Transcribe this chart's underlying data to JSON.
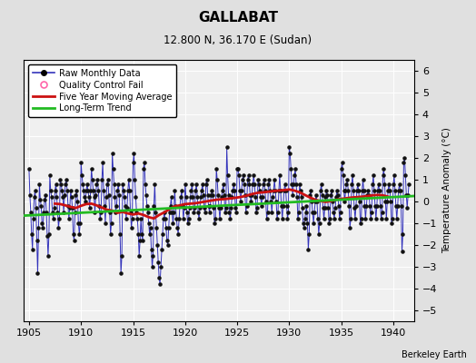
{
  "title": "GALLABAT",
  "subtitle": "12.800 N, 36.170 E (Sudan)",
  "ylabel": "Temperature Anomaly (°C)",
  "credit": "Berkeley Earth",
  "xlim": [
    1904.5,
    1942.0
  ],
  "ylim": [
    -5.5,
    6.5
  ],
  "yticks": [
    -5,
    -4,
    -3,
    -2,
    -1,
    0,
    1,
    2,
    3,
    4,
    5,
    6
  ],
  "xticks": [
    1905,
    1910,
    1915,
    1920,
    1925,
    1930,
    1935,
    1940
  ],
  "bg_color": "#e0e0e0",
  "plot_bg_color": "#f0f0f0",
  "raw_line_color": "#3333bb",
  "raw_dot_color": "#111111",
  "moving_avg_color": "#cc1111",
  "trend_color": "#22bb22",
  "legend_qc_color": "#ff66aa",
  "raw_monthly_x": [
    1905.0,
    1905.083,
    1905.167,
    1905.25,
    1905.333,
    1905.417,
    1905.5,
    1905.583,
    1905.667,
    1905.75,
    1905.833,
    1905.917,
    1906.0,
    1906.083,
    1906.167,
    1906.25,
    1906.333,
    1906.417,
    1906.5,
    1906.583,
    1906.667,
    1906.75,
    1906.833,
    1906.917,
    1907.0,
    1907.083,
    1907.167,
    1907.25,
    1907.333,
    1907.417,
    1907.5,
    1907.583,
    1907.667,
    1907.75,
    1907.833,
    1907.917,
    1908.0,
    1908.083,
    1908.167,
    1908.25,
    1908.333,
    1908.417,
    1908.5,
    1908.583,
    1908.667,
    1908.75,
    1908.833,
    1908.917,
    1909.0,
    1909.083,
    1909.167,
    1909.25,
    1909.333,
    1909.417,
    1909.5,
    1909.583,
    1909.667,
    1909.75,
    1909.833,
    1909.917,
    1910.0,
    1910.083,
    1910.167,
    1910.25,
    1910.333,
    1910.417,
    1910.5,
    1910.583,
    1910.667,
    1910.75,
    1910.833,
    1910.917,
    1911.0,
    1911.083,
    1911.167,
    1911.25,
    1911.333,
    1911.417,
    1911.5,
    1911.583,
    1911.667,
    1911.75,
    1911.833,
    1911.917,
    1912.0,
    1912.083,
    1912.167,
    1912.25,
    1912.333,
    1912.417,
    1912.5,
    1912.583,
    1912.667,
    1912.75,
    1912.833,
    1912.917,
    1913.0,
    1913.083,
    1913.167,
    1913.25,
    1913.333,
    1913.417,
    1913.5,
    1913.583,
    1913.667,
    1913.75,
    1913.833,
    1913.917,
    1914.0,
    1914.083,
    1914.167,
    1914.25,
    1914.333,
    1914.417,
    1914.5,
    1914.583,
    1914.667,
    1914.75,
    1914.833,
    1914.917,
    1915.0,
    1915.083,
    1915.167,
    1915.25,
    1915.333,
    1915.417,
    1915.5,
    1915.583,
    1915.667,
    1915.75,
    1915.833,
    1915.917,
    1916.0,
    1916.083,
    1916.167,
    1916.25,
    1916.333,
    1916.417,
    1916.5,
    1916.583,
    1916.667,
    1916.75,
    1916.833,
    1916.917,
    1917.0,
    1917.083,
    1917.167,
    1917.25,
    1917.333,
    1917.417,
    1917.5,
    1917.583,
    1917.667,
    1917.75,
    1917.833,
    1917.917,
    1918.0,
    1918.083,
    1918.167,
    1918.25,
    1918.333,
    1918.417,
    1918.5,
    1918.583,
    1918.667,
    1918.75,
    1918.833,
    1918.917,
    1919.0,
    1919.083,
    1919.167,
    1919.25,
    1919.333,
    1919.417,
    1919.5,
    1919.583,
    1919.667,
    1919.75,
    1919.833,
    1919.917,
    1920.0,
    1920.083,
    1920.167,
    1920.25,
    1920.333,
    1920.417,
    1920.5,
    1920.583,
    1920.667,
    1920.75,
    1920.833,
    1920.917,
    1921.0,
    1921.083,
    1921.167,
    1921.25,
    1921.333,
    1921.417,
    1921.5,
    1921.583,
    1921.667,
    1921.75,
    1921.833,
    1921.917,
    1922.0,
    1922.083,
    1922.167,
    1922.25,
    1922.333,
    1922.417,
    1922.5,
    1922.583,
    1922.667,
    1922.75,
    1922.833,
    1922.917,
    1923.0,
    1923.083,
    1923.167,
    1923.25,
    1923.333,
    1923.417,
    1923.5,
    1923.583,
    1923.667,
    1923.75,
    1923.833,
    1923.917,
    1924.0,
    1924.083,
    1924.167,
    1924.25,
    1924.333,
    1924.417,
    1924.5,
    1924.583,
    1924.667,
    1924.75,
    1924.833,
    1924.917,
    1925.0,
    1925.083,
    1925.167,
    1925.25,
    1925.333,
    1925.417,
    1925.5,
    1925.583,
    1925.667,
    1925.75,
    1925.833,
    1925.917,
    1926.0,
    1926.083,
    1926.167,
    1926.25,
    1926.333,
    1926.417,
    1926.5,
    1926.583,
    1926.667,
    1926.75,
    1926.833,
    1926.917,
    1927.0,
    1927.083,
    1927.167,
    1927.25,
    1927.333,
    1927.417,
    1927.5,
    1927.583,
    1927.667,
    1927.75,
    1927.833,
    1927.917,
    1928.0,
    1928.083,
    1928.167,
    1928.25,
    1928.333,
    1928.417,
    1928.5,
    1928.583,
    1928.667,
    1928.75,
    1928.833,
    1928.917,
    1929.0,
    1929.083,
    1929.167,
    1929.25,
    1929.333,
    1929.417,
    1929.5,
    1929.583,
    1929.667,
    1929.75,
    1929.833,
    1929.917,
    1930.0,
    1930.083,
    1930.167,
    1930.25,
    1930.333,
    1930.417,
    1930.5,
    1930.583,
    1930.667,
    1930.75,
    1930.833,
    1930.917,
    1931.0,
    1931.083,
    1931.167,
    1931.25,
    1931.333,
    1931.417,
    1931.5,
    1931.583,
    1931.667,
    1931.75,
    1931.833,
    1931.917,
    1932.0,
    1932.083,
    1932.167,
    1932.25,
    1932.333,
    1932.417,
    1932.5,
    1932.583,
    1932.667,
    1932.75,
    1932.833,
    1932.917,
    1933.0,
    1933.083,
    1933.167,
    1933.25,
    1933.333,
    1933.417,
    1933.5,
    1933.583,
    1933.667,
    1933.75,
    1933.833,
    1933.917,
    1934.0,
    1934.083,
    1934.167,
    1934.25,
    1934.333,
    1934.417,
    1934.5,
    1934.583,
    1934.667,
    1934.75,
    1934.833,
    1934.917,
    1935.0,
    1935.083,
    1935.167,
    1935.25,
    1935.333,
    1935.417,
    1935.5,
    1935.583,
    1935.667,
    1935.75,
    1935.833,
    1935.917,
    1936.0,
    1936.083,
    1936.167,
    1936.25,
    1936.333,
    1936.417,
    1936.5,
    1936.583,
    1936.667,
    1936.75,
    1936.833,
    1936.917,
    1937.0,
    1937.083,
    1937.167,
    1937.25,
    1937.333,
    1937.417,
    1937.5,
    1937.583,
    1937.667,
    1937.75,
    1937.833,
    1937.917,
    1938.0,
    1938.083,
    1938.167,
    1938.25,
    1938.333,
    1938.417,
    1938.5,
    1938.583,
    1938.667,
    1938.75,
    1938.833,
    1938.917,
    1939.0,
    1939.083,
    1939.167,
    1939.25,
    1939.333,
    1939.417,
    1939.5,
    1939.583,
    1939.667,
    1939.75,
    1939.833,
    1939.917,
    1940.0,
    1940.083,
    1940.167,
    1940.25,
    1940.333,
    1940.417,
    1940.5,
    1940.583,
    1940.667,
    1940.75,
    1940.833,
    1940.917,
    1941.0,
    1941.083,
    1941.167,
    1941.25,
    1941.333,
    1941.417,
    1941.5
  ],
  "raw_monthly_y": [
    1.5,
    0.3,
    -0.5,
    -1.5,
    -2.2,
    -0.8,
    0.2,
    0.5,
    -0.3,
    -1.8,
    -3.3,
    -1.2,
    0.8,
    0.1,
    -0.2,
    -1.0,
    -1.2,
    -0.5,
    0.1,
    0.3,
    -0.5,
    -1.6,
    -2.5,
    -1.5,
    1.2,
    0.5,
    0.2,
    -0.5,
    -0.8,
    -0.3,
    0.5,
    0.8,
    0.2,
    -0.5,
    -1.2,
    -0.8,
    1.0,
    0.8,
    0.5,
    0.2,
    -0.5,
    0.3,
    0.8,
    1.0,
    0.5,
    -0.2,
    -0.8,
    -0.3,
    0.5,
    0.2,
    -0.3,
    -1.5,
    -1.8,
    -0.5,
    0.3,
    0.5,
    0.0,
    -1.0,
    -1.5,
    -1.0,
    1.8,
    1.2,
    0.8,
    0.5,
    0.2,
    0.0,
    0.5,
    0.8,
    0.5,
    0.2,
    -0.3,
    0.5,
    1.5,
    1.0,
    0.5,
    0.2,
    -0.5,
    0.3,
    0.8,
    1.0,
    0.5,
    -0.2,
    -0.8,
    -0.5,
    1.0,
    1.8,
    0.5,
    -0.2,
    -1.0,
    0.2,
    0.8,
    1.0,
    0.3,
    -0.5,
    -1.5,
    -1.0,
    2.2,
    1.5,
    0.8,
    0.2,
    -0.5,
    -0.2,
    0.5,
    0.8,
    0.3,
    -1.5,
    -3.3,
    -2.5,
    0.8,
    0.5,
    0.2,
    -0.2,
    -0.8,
    -0.3,
    0.5,
    1.0,
    0.5,
    -0.5,
    -1.2,
    -0.8,
    1.8,
    2.2,
    1.0,
    0.2,
    -0.5,
    -0.8,
    -1.5,
    -2.5,
    -1.8,
    -0.8,
    -1.5,
    -1.8,
    1.5,
    1.8,
    0.8,
    0.3,
    -0.2,
    -0.5,
    -1.0,
    -1.5,
    -1.2,
    -2.2,
    -3.0,
    -2.5,
    -0.2,
    0.8,
    -0.5,
    -1.2,
    -2.0,
    -2.8,
    -3.5,
    -3.8,
    -3.0,
    -2.2,
    -1.5,
    -0.8,
    -0.5,
    -0.8,
    -1.2,
    -1.8,
    -2.0,
    -1.2,
    -0.5,
    -0.2,
    0.2,
    -0.5,
    -1.0,
    -0.5,
    0.5,
    -0.2,
    -0.8,
    -1.2,
    -1.5,
    -0.8,
    -0.2,
    0.2,
    0.5,
    -0.2,
    -0.8,
    -0.3,
    0.8,
    0.2,
    -0.5,
    -1.0,
    -0.8,
    -0.3,
    0.2,
    0.5,
    0.8,
    0.2,
    -0.5,
    -0.3,
    0.5,
    0.8,
    0.2,
    -0.5,
    -0.8,
    -0.3,
    0.2,
    0.5,
    0.8,
    0.3,
    -0.3,
    -0.5,
    0.8,
    1.0,
    0.3,
    -0.2,
    -0.5,
    -0.2,
    0.3,
    0.5,
    0.3,
    -0.3,
    -1.0,
    -0.8,
    1.5,
    1.0,
    0.3,
    -0.3,
    -0.8,
    -0.3,
    0.2,
    0.5,
    0.8,
    0.3,
    -0.5,
    -0.3,
    2.5,
    1.2,
    0.3,
    -0.5,
    -0.8,
    -0.3,
    0.2,
    0.5,
    0.8,
    0.5,
    -0.3,
    -0.5,
    1.5,
    1.5,
    1.2,
    0.5,
    0.0,
    0.5,
    1.0,
    1.2,
    0.8,
    0.3,
    -0.5,
    -0.2,
    1.0,
    1.2,
    0.8,
    0.3,
    0.0,
    0.3,
    0.8,
    1.2,
    0.8,
    0.2,
    -0.5,
    -0.3,
    1.0,
    0.8,
    0.5,
    0.2,
    -0.2,
    0.2,
    0.8,
    1.0,
    0.5,
    0.0,
    -0.8,
    -0.5,
    0.8,
    1.0,
    0.5,
    0.0,
    -0.5,
    0.2,
    0.5,
    1.0,
    0.5,
    0.0,
    -0.8,
    -0.5,
    0.5,
    1.2,
    0.5,
    -0.2,
    -0.8,
    -0.2,
    0.5,
    0.8,
    0.5,
    -0.2,
    -0.8,
    -0.5,
    2.5,
    2.2,
    1.5,
    0.8,
    0.3,
    0.8,
    1.2,
    1.5,
    0.8,
    0.2,
    -0.8,
    -0.5,
    0.8,
    0.5,
    0.2,
    -0.3,
    -1.0,
    -1.2,
    -0.8,
    -0.5,
    -0.2,
    -1.0,
    -2.2,
    -1.5,
    0.3,
    0.5,
    0.0,
    -0.5,
    -1.0,
    -0.5,
    0.0,
    0.3,
    0.0,
    -0.8,
    -1.5,
    -1.0,
    0.5,
    0.8,
    0.3,
    -0.3,
    -0.8,
    -0.3,
    0.2,
    0.5,
    0.3,
    -0.3,
    -1.0,
    -0.8,
    0.3,
    0.5,
    0.0,
    -0.5,
    -0.8,
    -0.3,
    0.2,
    0.5,
    0.3,
    -0.2,
    -0.8,
    -0.5,
    1.5,
    1.8,
    1.2,
    0.5,
    0.0,
    0.5,
    0.8,
    1.0,
    0.5,
    -0.2,
    -1.2,
    -0.8,
    0.8,
    1.2,
    0.5,
    -0.3,
    -0.8,
    -0.2,
    0.5,
    0.8,
    0.5,
    0.0,
    -1.0,
    -0.8,
    0.5,
    1.0,
    0.5,
    -0.2,
    -0.8,
    -0.2,
    0.3,
    0.5,
    0.3,
    -0.2,
    -0.8,
    -0.5,
    0.8,
    1.2,
    0.5,
    -0.2,
    -0.8,
    -0.2,
    0.5,
    0.8,
    0.5,
    -0.2,
    -0.8,
    -0.5,
    1.2,
    1.5,
    0.8,
    0.0,
    -0.8,
    0.0,
    0.5,
    0.8,
    0.5,
    0.0,
    -1.0,
    -0.8,
    0.8,
    1.2,
    0.5,
    -0.2,
    -0.8,
    -0.2,
    0.5,
    0.8,
    0.5,
    -0.2,
    -2.3,
    -1.5,
    1.8,
    2.0,
    1.2,
    0.3,
    -0.3,
    0.3,
    0.8,
    1.0,
    0.5,
    -0.2,
    -0.8,
    -0.5,
    1.5,
    0.8,
    0.0,
    1.5
  ],
  "trend_x": [
    1904.5,
    1942.0
  ],
  "trend_y": [
    -0.65,
    0.25
  ],
  "moving_avg_x": [
    1907.5,
    1908.0,
    1908.5,
    1909.0,
    1909.5,
    1910.0,
    1910.5,
    1911.0,
    1911.5,
    1912.0,
    1912.5,
    1913.0,
    1913.5,
    1914.0,
    1914.5,
    1915.0,
    1915.5,
    1916.0,
    1916.5,
    1917.0,
    1917.5,
    1918.0,
    1918.5,
    1919.0,
    1919.5,
    1920.0,
    1920.5,
    1921.0,
    1921.5,
    1922.0,
    1922.5,
    1923.0,
    1923.5,
    1924.0,
    1924.5,
    1925.0,
    1925.5,
    1926.0,
    1926.5,
    1927.0,
    1927.5,
    1928.0,
    1928.5,
    1929.0,
    1929.5,
    1930.0,
    1930.5,
    1931.0,
    1931.5,
    1932.0,
    1932.5,
    1933.0,
    1933.5,
    1934.0,
    1934.5,
    1935.0,
    1935.5,
    1936.0,
    1936.5,
    1937.0,
    1937.5,
    1938.0,
    1938.5,
    1939.0,
    1939.5
  ],
  "moving_avg_y": [
    -0.1,
    -0.12,
    -0.18,
    -0.25,
    -0.3,
    -0.2,
    -0.12,
    -0.1,
    -0.18,
    -0.28,
    -0.38,
    -0.42,
    -0.52,
    -0.48,
    -0.55,
    -0.6,
    -0.55,
    -0.62,
    -0.72,
    -0.78,
    -0.62,
    -0.5,
    -0.35,
    -0.22,
    -0.18,
    -0.12,
    -0.1,
    -0.08,
    -0.04,
    0.0,
    0.04,
    0.08,
    0.1,
    0.12,
    0.15,
    0.18,
    0.22,
    0.28,
    0.35,
    0.4,
    0.42,
    0.45,
    0.48,
    0.5,
    0.52,
    0.55,
    0.5,
    0.42,
    0.3,
    0.18,
    0.08,
    0.02,
    -0.02,
    0.02,
    0.08,
    0.12,
    0.15,
    0.18,
    0.2,
    0.22,
    0.25,
    0.28,
    0.3,
    0.28,
    0.22
  ]
}
